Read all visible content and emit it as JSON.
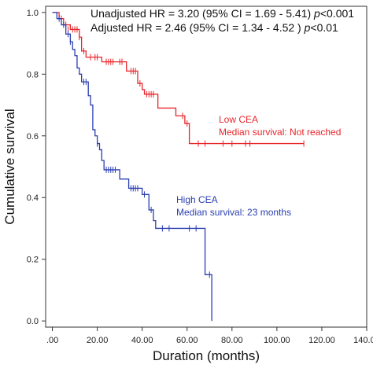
{
  "chart_data": {
    "type": "line",
    "xlabel": "Duration (months)",
    "ylabel": "Cumulative survival",
    "xlim": [
      -3,
      140
    ],
    "ylim": [
      -0.02,
      1.02
    ],
    "x_ticks": [
      0,
      20,
      40,
      60,
      80,
      100,
      120,
      140
    ],
    "x_tick_labels": [
      ".00",
      "20.00",
      "40.00",
      "60.00",
      "80.00",
      "100.00",
      "120.00",
      "140.00"
    ],
    "y_ticks": [
      0,
      0.2,
      0.4,
      0.6,
      0.8,
      1.0
    ],
    "y_tick_labels": [
      "0.0",
      "0.2",
      "0.4",
      "0.6",
      "0.8",
      "1.0"
    ],
    "grid": false,
    "annotations": {
      "unadjusted_prefix": "Unadjusted HR = 3.20 (95% CI = 1.69 - 5.41) ",
      "unadjusted_p": "p",
      "unadjusted_suffix": "<0.001",
      "adjusted_prefix": "Adjusted HR = 2.46 (95% CI = 1.34 - 4.52 ) ",
      "adjusted_p": "p",
      "adjusted_suffix": "<0.01"
    },
    "series": [
      {
        "name": "Low CEA",
        "label_line1": "Low CEA",
        "label_line2": "Median survival: Not reached",
        "color": "#e8262b",
        "steps": [
          [
            0,
            1.0
          ],
          [
            3,
            0.98
          ],
          [
            5,
            0.96
          ],
          [
            8,
            0.945
          ],
          [
            12,
            0.92
          ],
          [
            13,
            0.875
          ],
          [
            15,
            0.855
          ],
          [
            22,
            0.84
          ],
          [
            33,
            0.81
          ],
          [
            38,
            0.77
          ],
          [
            40,
            0.75
          ],
          [
            41,
            0.735
          ],
          [
            47,
            0.69
          ],
          [
            55,
            0.665
          ],
          [
            59,
            0.64
          ],
          [
            61,
            0.575
          ],
          [
            112,
            0.575
          ]
        ],
        "censored": [
          [
            4,
            0.98
          ],
          [
            6,
            0.96
          ],
          [
            7,
            0.945
          ],
          [
            9,
            0.945
          ],
          [
            10,
            0.945
          ],
          [
            11,
            0.945
          ],
          [
            12,
            0.92
          ],
          [
            14,
            0.875
          ],
          [
            17,
            0.855
          ],
          [
            19,
            0.855
          ],
          [
            20,
            0.855
          ],
          [
            24,
            0.84
          ],
          [
            25,
            0.84
          ],
          [
            26,
            0.84
          ],
          [
            27,
            0.84
          ],
          [
            30,
            0.84
          ],
          [
            31,
            0.84
          ],
          [
            35,
            0.81
          ],
          [
            36,
            0.81
          ],
          [
            37,
            0.81
          ],
          [
            39,
            0.77
          ],
          [
            42,
            0.735
          ],
          [
            43,
            0.735
          ],
          [
            44,
            0.735
          ],
          [
            45,
            0.735
          ],
          [
            58,
            0.665
          ],
          [
            60,
            0.64
          ],
          [
            65,
            0.575
          ],
          [
            68,
            0.575
          ],
          [
            76,
            0.575
          ],
          [
            80,
            0.575
          ],
          [
            86,
            0.575
          ],
          [
            88,
            0.575
          ],
          [
            112,
            0.575
          ]
        ]
      },
      {
        "name": "High CEA",
        "label_line1": "High CEA",
        "label_line2": "Median survival: 23 months",
        "color": "#2a3eb1",
        "steps": [
          [
            0,
            1.0
          ],
          [
            2,
            0.98
          ],
          [
            4,
            0.96
          ],
          [
            6,
            0.93
          ],
          [
            8,
            0.905
          ],
          [
            9,
            0.88
          ],
          [
            10,
            0.86
          ],
          [
            11,
            0.82
          ],
          [
            12,
            0.8
          ],
          [
            13,
            0.775
          ],
          [
            16,
            0.73
          ],
          [
            17,
            0.7
          ],
          [
            18,
            0.62
          ],
          [
            19,
            0.6
          ],
          [
            20,
            0.575
          ],
          [
            21,
            0.555
          ],
          [
            22,
            0.52
          ],
          [
            23,
            0.49
          ],
          [
            30,
            0.46
          ],
          [
            34,
            0.43
          ],
          [
            40,
            0.41
          ],
          [
            43,
            0.36
          ],
          [
            45,
            0.325
          ],
          [
            46,
            0.3
          ],
          [
            68,
            0.15
          ],
          [
            71,
            0.0
          ]
        ],
        "censored": [
          [
            3,
            0.98
          ],
          [
            5,
            0.96
          ],
          [
            7,
            0.93
          ],
          [
            8,
            0.905
          ],
          [
            14,
            0.775
          ],
          [
            15,
            0.775
          ],
          [
            20,
            0.575
          ],
          [
            24,
            0.49
          ],
          [
            25,
            0.49
          ],
          [
            26,
            0.49
          ],
          [
            27,
            0.49
          ],
          [
            28,
            0.49
          ],
          [
            35,
            0.43
          ],
          [
            36,
            0.43
          ],
          [
            37,
            0.43
          ],
          [
            38,
            0.43
          ],
          [
            41,
            0.41
          ],
          [
            44,
            0.36
          ],
          [
            49,
            0.3
          ],
          [
            52,
            0.3
          ],
          [
            61,
            0.3
          ],
          [
            64,
            0.3
          ],
          [
            70,
            0.15
          ]
        ]
      }
    ]
  }
}
